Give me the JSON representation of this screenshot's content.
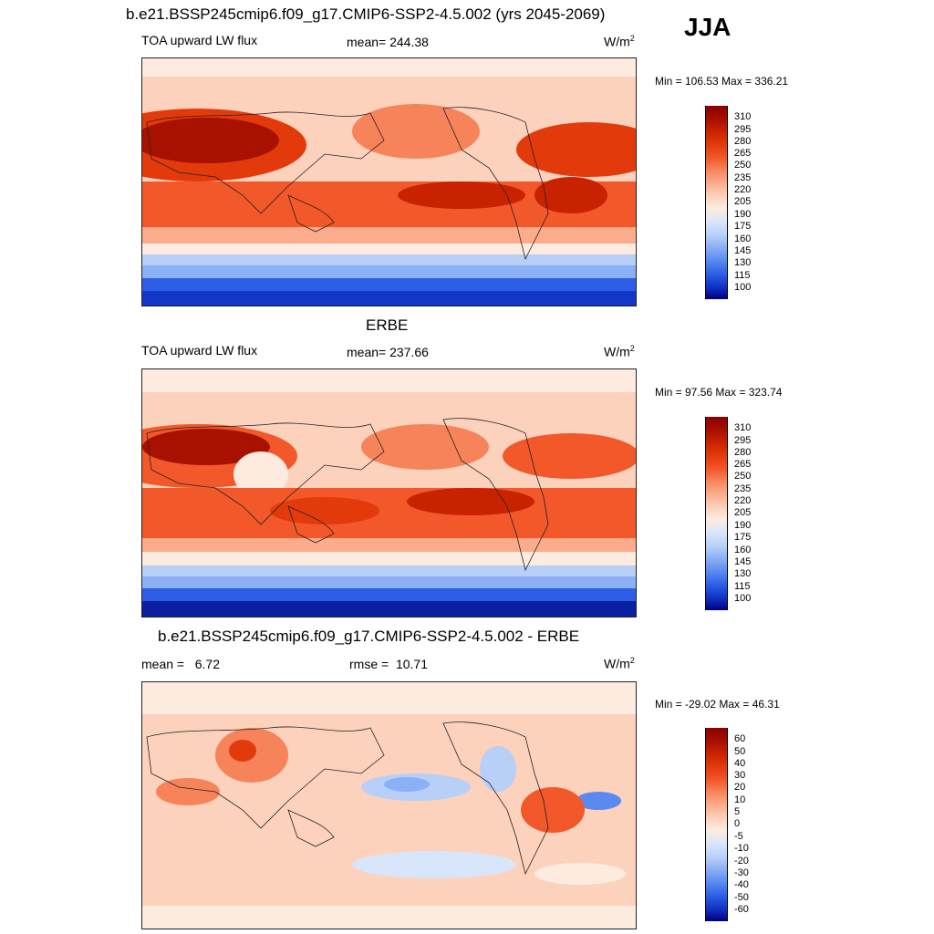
{
  "header": {
    "title": "b.e21.BSSP245cmip6.f09_g17.CMIP6-SSP2-4.5.002 (yrs 2045-2069)",
    "season": "JJA"
  },
  "panels": [
    {
      "title": "",
      "variable": "TOA upward LW flux",
      "stat": "mean= 244.38",
      "stat2": "",
      "units": "W/m",
      "units_sup": "2",
      "minmax": "Min = 106.53 Max = 336.21",
      "colorbar_levels": [
        "310",
        "295",
        "280",
        "265",
        "250",
        "235",
        "220",
        "205",
        "190",
        "175",
        "160",
        "145",
        "130",
        "115",
        "100"
      ]
    },
    {
      "title": "ERBE",
      "variable": "TOA upward LW flux",
      "stat": "mean= 237.66",
      "stat2": "",
      "units": "W/m",
      "units_sup": "2",
      "minmax": "Min =  97.56 Max = 323.74",
      "colorbar_levels": [
        "310",
        "295",
        "280",
        "265",
        "250",
        "235",
        "220",
        "205",
        "190",
        "175",
        "160",
        "145",
        "130",
        "115",
        "100"
      ]
    },
    {
      "title": "b.e21.BSSP245cmip6.f09_g17.CMIP6-SSP2-4.5.002 - ERBE",
      "variable": "mean =   6.72",
      "stat": "rmse =  10.71",
      "stat2": "",
      "units": "W/m",
      "units_sup": "2",
      "minmax": "Min = -29.02 Max =  46.31",
      "colorbar_levels": [
        "60",
        "50",
        "40",
        "30",
        "20",
        "10",
        "5",
        "0",
        "-5",
        "-10",
        "-20",
        "-30",
        "-40",
        "-50",
        "-60"
      ]
    }
  ],
  "colors": {
    "ramp": [
      "#8b0000",
      "#a81000",
      "#c82200",
      "#e33a0c",
      "#f2582a",
      "#f7835a",
      "#fbac8c",
      "#fcd2bd",
      "#fdebe0",
      "#d8e6fb",
      "#b8cff8",
      "#8cb0f5",
      "#5a8af0",
      "#2d5ee6",
      "#1236c8",
      "#0a20a0",
      "#000080"
    ]
  }
}
